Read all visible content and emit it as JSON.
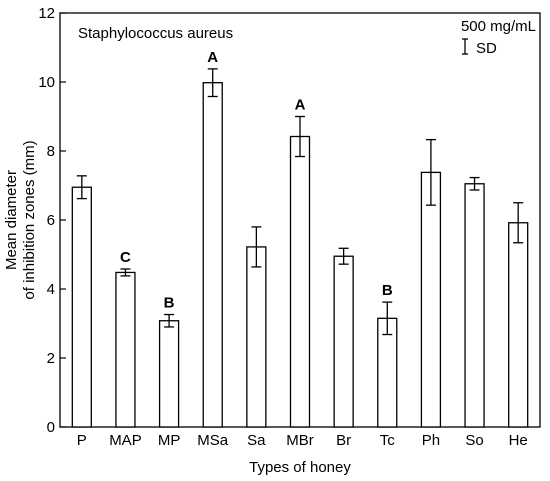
{
  "chart_data": {
    "type": "bar",
    "title": "Staphylococcus aureus",
    "concentration_label": "500 mg/mL",
    "error_legend_label": "SD",
    "xlabel": "Types of honey",
    "ylabel_lines": [
      "Mean diameter",
      "of inhibition zones (mm)"
    ],
    "ylim": [
      0,
      12
    ],
    "yticks": [
      0,
      2,
      4,
      6,
      8,
      10,
      12
    ],
    "categories": [
      "P",
      "MAP",
      "MP",
      "MSa",
      "Sa",
      "MBr",
      "Br",
      "Tc",
      "Ph",
      "So",
      "He"
    ],
    "series": [
      {
        "values": [
          6.95,
          4.48,
          3.08,
          9.98,
          5.22,
          8.42,
          4.95,
          3.15,
          7.38,
          7.05,
          5.92
        ],
        "sd": [
          0.33,
          0.1,
          0.18,
          0.4,
          0.58,
          0.58,
          0.23,
          0.47,
          0.95,
          0.18,
          0.58
        ]
      }
    ],
    "significance_letters": [
      "",
      "C",
      "B",
      "A",
      "",
      "A",
      "",
      "B",
      "",
      "",
      ""
    ],
    "grid": false,
    "bar_color": "#ffffff",
    "edge_color": "#000000"
  }
}
